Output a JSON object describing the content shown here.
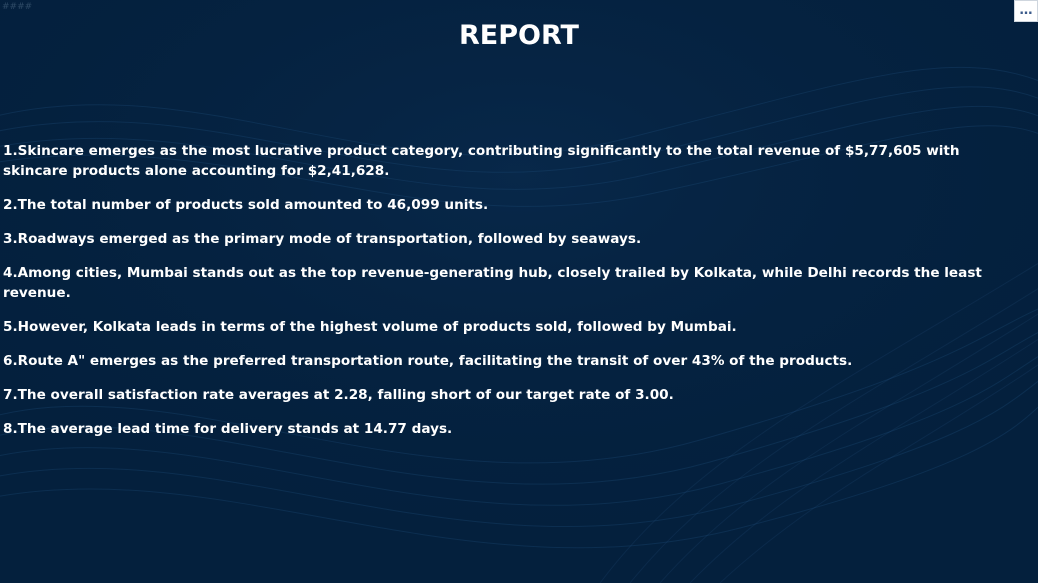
{
  "page": {
    "corner_label": "####",
    "title": "REPORT",
    "more_button_icon": "more-options-icon",
    "more_button_glyph": "…"
  },
  "colors": {
    "background": "#04203d",
    "text": "#ffffff",
    "accent": "#3a5a8a"
  },
  "report": {
    "points": [
      "1.Skincare emerges as the most lucrative product category, contributing significantly to the total revenue of $5,77,605 with skincare products alone accounting for $2,41,628.",
      "2.The total number of products sold amounted to 46,099 units.",
      "3.Roadways emerged as the primary mode of transportation, followed by seaways.",
      "4.Among cities, Mumbai stands out as the top revenue-generating hub, closely trailed by Kolkata, while Delhi records the least revenue.",
      "5.However, Kolkata leads in terms of the highest volume of products sold, followed by Mumbai.",
      "6.Route A\" emerges as the preferred transportation route, facilitating the transit of over 43% of the products.",
      "7.The overall satisfaction rate averages at 2.28, falling short of our target rate of 3.00.",
      "8.The average lead time for delivery stands at 14.77 days."
    ]
  }
}
